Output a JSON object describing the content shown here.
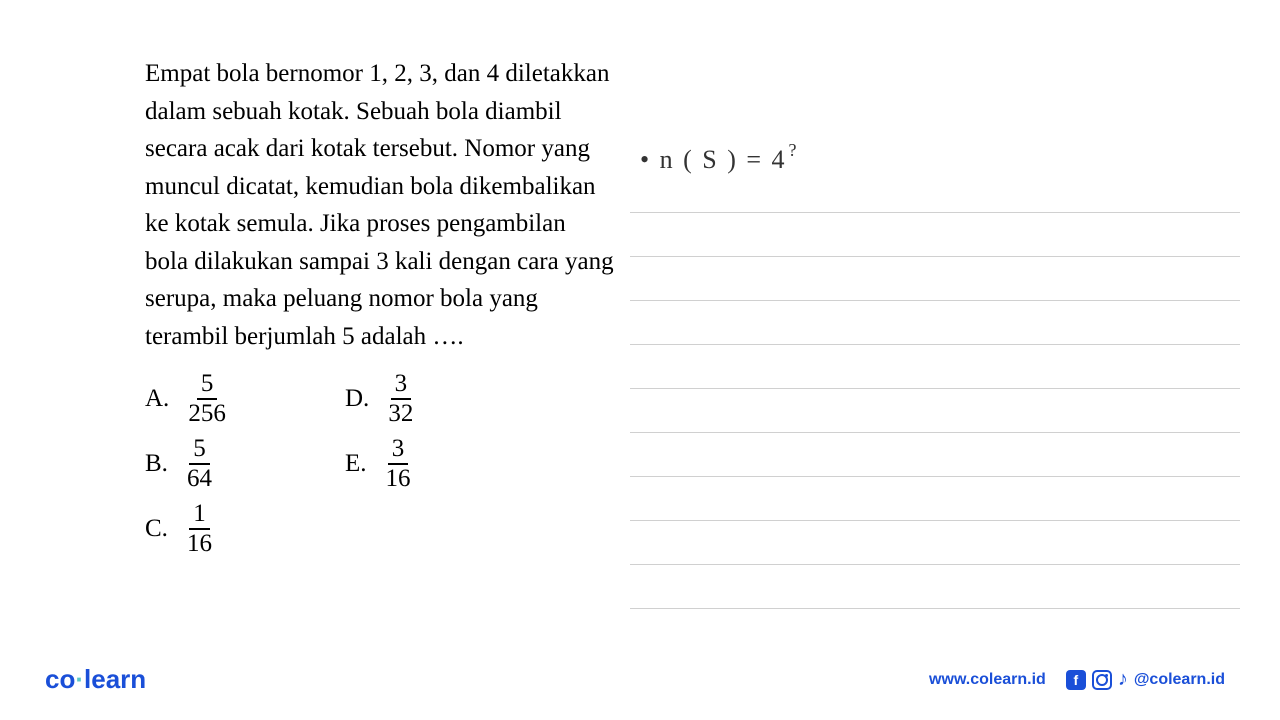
{
  "question": {
    "text": "Empat bola bernomor 1, 2, 3, dan 4 diletakkan dalam sebuah kotak. Sebuah bola diambil secara acak dari kotak tersebut. Nomor yang muncul dicatat, kemudian bola dikembalikan ke kotak semula. Jika proses pengambilan bola dilakukan sampai 3 kali dengan cara yang serupa, maka peluang nomor bola yang terambil berjumlah 5 adalah …."
  },
  "options": {
    "a": {
      "label": "A.",
      "num": "5",
      "den": "256"
    },
    "b": {
      "label": "B.",
      "num": "5",
      "den": "64"
    },
    "c": {
      "label": "C.",
      "num": "1",
      "den": "16"
    },
    "d": {
      "label": "D.",
      "num": "3",
      "den": "32"
    },
    "e": {
      "label": "E.",
      "num": "3",
      "den": "16"
    }
  },
  "handwriting": {
    "line1_prefix": "• n ( S ) = 4",
    "line1_exp": "?"
  },
  "footer": {
    "logo_co": "co",
    "logo_dot": "·",
    "logo_learn": "learn",
    "website": "www.colearn.id",
    "handle": "@colearn.id",
    "fb": "f",
    "tiktok": "♪"
  },
  "colors": {
    "text": "#000000",
    "brand": "#1a4fd8",
    "accent": "#5cc9c9",
    "rule": "#d0d0d0",
    "handwriting": "#333333"
  }
}
